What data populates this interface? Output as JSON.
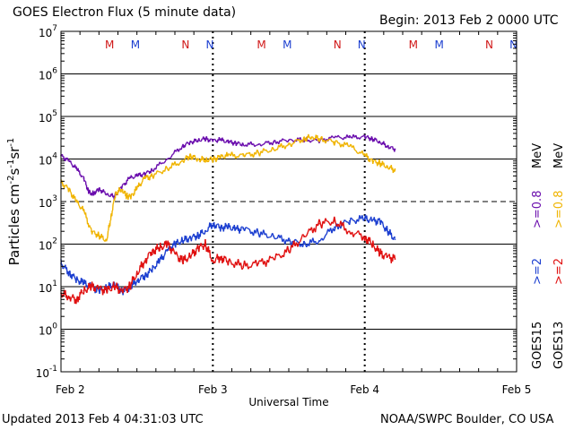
{
  "header": {
    "title": "GOES Electron Flux (5 minute data)",
    "begin": "Begin: 2013 Feb 2 0000 UTC"
  },
  "footer": {
    "updated": "Updated 2013 Feb  4 04:31:03 UTC",
    "source": "NOAA/SWPC Boulder, CO USA"
  },
  "colors": {
    "goes15_08": "#6a0dad",
    "goes13_08": "#f0b400",
    "goes15_2": "#1c3fd0",
    "goes13_2": "#e01010",
    "marker_m": "#d01818",
    "marker_n": "#1c3fd0"
  },
  "chart_data": {
    "type": "line",
    "title": "GOES Electron Flux (5 minute data)",
    "xlabel": "Universal Time",
    "ylabel_base": "Particles cm",
    "ylabel_parts": [
      "-2",
      "s",
      "-1",
      "sr",
      "-1"
    ],
    "x_ticks": [
      "Feb 2",
      "Feb 3",
      "Feb 4",
      "Feb 5"
    ],
    "xlim_days": [
      0,
      3
    ],
    "ylim_log10": [
      -1,
      7
    ],
    "y_ticks": [
      {
        "exp": 7,
        "label_base": "10",
        "label_exp": "7"
      },
      {
        "exp": 6,
        "label_base": "10",
        "label_exp": "6"
      },
      {
        "exp": 5,
        "label_base": "10",
        "label_exp": "5"
      },
      {
        "exp": 4,
        "label_base": "10",
        "label_exp": "4"
      },
      {
        "exp": 3,
        "label_base": "10",
        "label_exp": "3"
      },
      {
        "exp": 2,
        "label_base": "10",
        "label_exp": "2"
      },
      {
        "exp": 1,
        "label_base": "10",
        "label_exp": "1"
      },
      {
        "exp": 0,
        "label_base": "10",
        "label_exp": "0"
      },
      {
        "exp": -1,
        "label_base": "10",
        "label_exp": "-1"
      }
    ],
    "threshold_log10": 3,
    "markers": [
      {
        "label": "M",
        "color": "#d01818",
        "day": 0.32
      },
      {
        "label": "M",
        "color": "#1c3fd0",
        "day": 0.49
      },
      {
        "label": "N",
        "color": "#d01818",
        "day": 0.82
      },
      {
        "label": "N",
        "color": "#1c3fd0",
        "day": 0.98
      },
      {
        "label": "M",
        "color": "#d01818",
        "day": 1.32
      },
      {
        "label": "M",
        "color": "#1c3fd0",
        "day": 1.49
      },
      {
        "label": "N",
        "color": "#d01818",
        "day": 1.82
      },
      {
        "label": "N",
        "color": "#1c3fd0",
        "day": 1.98
      },
      {
        "label": "M",
        "color": "#d01818",
        "day": 2.32
      },
      {
        "label": "M",
        "color": "#1c3fd0",
        "day": 2.49
      },
      {
        "label": "N",
        "color": "#d01818",
        "day": 2.82
      },
      {
        "label": "N",
        "color": "#1c3fd0",
        "day": 2.98
      }
    ],
    "legend": [
      {
        "text": "GOES15",
        "color": "#000000"
      },
      {
        "text": ">=2",
        "color": "#1c3fd0"
      },
      {
        "text": ">=0.8",
        "color": "#6a0dad"
      },
      {
        "text": "MeV",
        "color": "#000000"
      },
      {
        "text": "GOES13",
        "color": "#000000"
      },
      {
        "text": ">=2",
        "color": "#e01010"
      },
      {
        "text": ">=0.8",
        "color": "#f0b400"
      },
      {
        "text": "MeV",
        "color": "#000000"
      }
    ],
    "series": [
      {
        "name": "GOES15 >=0.8 MeV",
        "color": "#6a0dad",
        "x": [
          0,
          0.05,
          0.1,
          0.15,
          0.18,
          0.2,
          0.22,
          0.25,
          0.3,
          0.35,
          0.4,
          0.45,
          0.5,
          0.55,
          0.6,
          0.7,
          0.8,
          0.85,
          0.9,
          0.95,
          1.0,
          1.05,
          1.1,
          1.15,
          1.2,
          1.3,
          1.4,
          1.5,
          1.6,
          1.7,
          1.8,
          1.9,
          2.0,
          2.05,
          2.1,
          2.15,
          2.2
        ],
        "y": [
          12000,
          9000,
          6000,
          3500,
          1800,
          1500,
          1600,
          2000,
          1500,
          1300,
          2200,
          3500,
          4000,
          4500,
          5500,
          10000,
          20000,
          25000,
          27000,
          30000,
          27000,
          28000,
          25000,
          24000,
          22000,
          22000,
          25000,
          28000,
          28000,
          27000,
          32000,
          32000,
          33000,
          30000,
          25000,
          20000,
          17000
        ]
      },
      {
        "name": "GOES13 >=0.8 MeV",
        "color": "#f0b400",
        "x": [
          0,
          0.05,
          0.1,
          0.15,
          0.2,
          0.25,
          0.3,
          0.33,
          0.36,
          0.4,
          0.43,
          0.46,
          0.5,
          0.55,
          0.6,
          0.7,
          0.8,
          0.85,
          0.9,
          0.95,
          1.0,
          1.05,
          1.1,
          1.2,
          1.3,
          1.4,
          1.5,
          1.6,
          1.65,
          1.7,
          1.8,
          1.9,
          2.0,
          2.05,
          2.1,
          2.15,
          2.2
        ],
        "y": [
          2800,
          2000,
          1000,
          600,
          200,
          160,
          120,
          450,
          1600,
          1900,
          1400,
          1300,
          2000,
          3500,
          4000,
          6000,
          9000,
          12000,
          10000,
          9500,
          10000,
          11000,
          12000,
          12000,
          14000,
          17000,
          22000,
          30000,
          33000,
          30000,
          25000,
          20000,
          12000,
          9000,
          8000,
          6500,
          5500
        ]
      },
      {
        "name": "GOES15 >=2 MeV",
        "color": "#1c3fd0",
        "x": [
          0,
          0.05,
          0.1,
          0.15,
          0.2,
          0.25,
          0.3,
          0.35,
          0.4,
          0.45,
          0.5,
          0.55,
          0.6,
          0.65,
          0.7,
          0.75,
          0.8,
          0.85,
          0.9,
          0.95,
          1.0,
          1.05,
          1.1,
          1.15,
          1.2,
          1.3,
          1.4,
          1.5,
          1.6,
          1.7,
          1.8,
          1.9,
          2.0,
          2.05,
          2.1,
          2.15,
          2.2
        ],
        "y": [
          35,
          22,
          15,
          12,
          10,
          8,
          9,
          12,
          8,
          9,
          14,
          18,
          25,
          40,
          70,
          100,
          120,
          140,
          160,
          200,
          300,
          250,
          250,
          220,
          230,
          180,
          150,
          120,
          100,
          120,
          250,
          350,
          400,
          350,
          350,
          200,
          130
        ]
      },
      {
        "name": "GOES13 >=2 MeV",
        "color": "#e01010",
        "x": [
          0,
          0.05,
          0.1,
          0.15,
          0.2,
          0.25,
          0.3,
          0.35,
          0.4,
          0.45,
          0.5,
          0.55,
          0.6,
          0.65,
          0.7,
          0.75,
          0.8,
          0.85,
          0.9,
          0.95,
          1.0,
          1.05,
          1.1,
          1.2,
          1.3,
          1.4,
          1.5,
          1.6,
          1.7,
          1.8,
          1.9,
          2.0,
          2.05,
          2.1,
          2.15,
          2.2
        ],
        "y": [
          7,
          6,
          5,
          8,
          10,
          9,
          8,
          10,
          8,
          10,
          20,
          40,
          70,
          80,
          100,
          60,
          40,
          50,
          80,
          100,
          40,
          50,
          40,
          30,
          35,
          45,
          70,
          150,
          300,
          350,
          200,
          150,
          100,
          60,
          50,
          45
        ]
      }
    ]
  }
}
